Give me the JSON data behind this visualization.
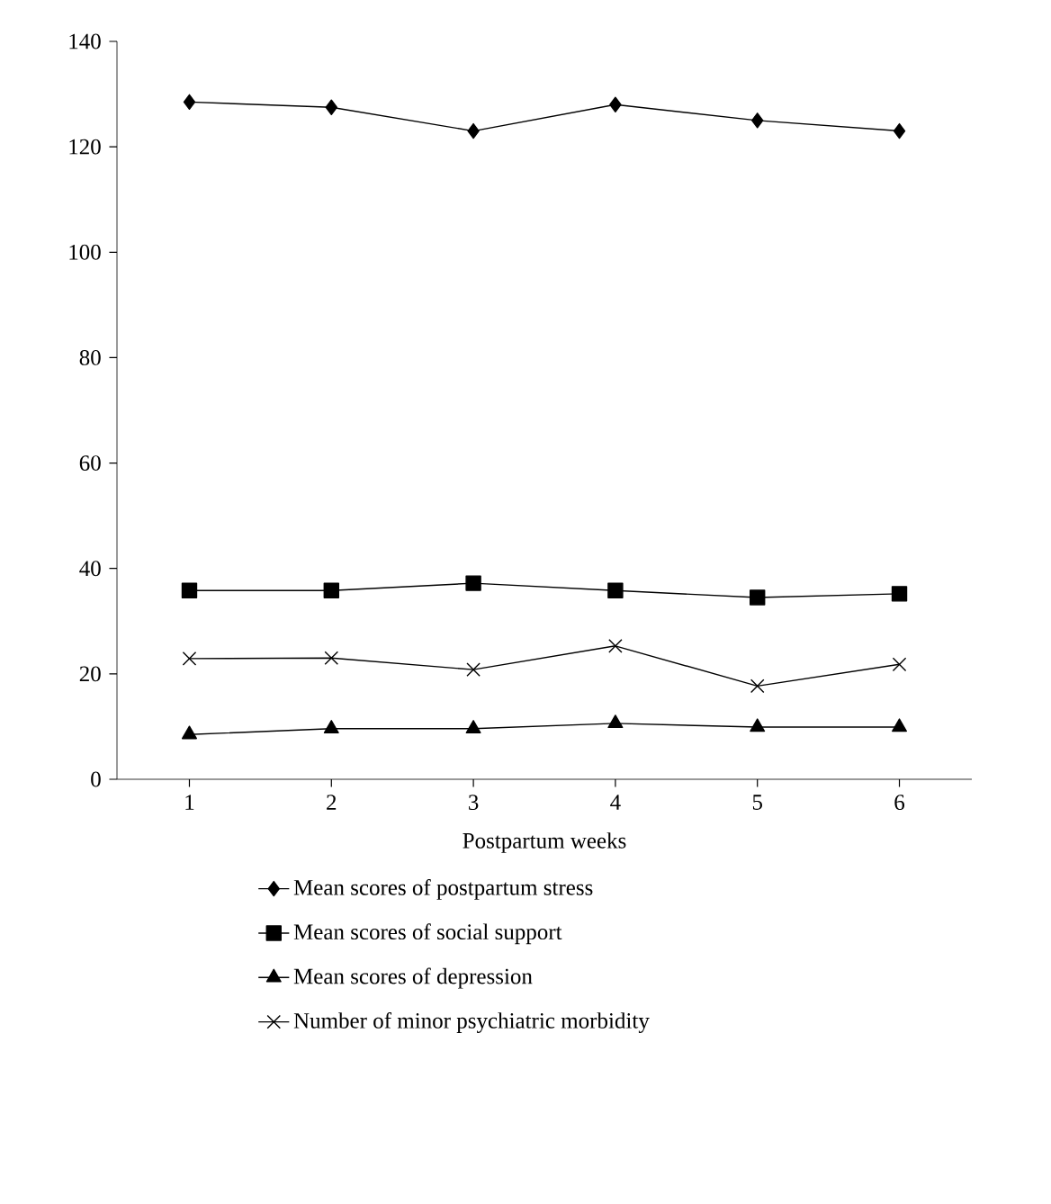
{
  "chart_data": {
    "type": "line",
    "xlabel": "Postpartum weeks",
    "categories": [
      "1",
      "2",
      "3",
      "4",
      "5",
      "6"
    ],
    "ylim": [
      0,
      140
    ],
    "yticks": [
      0,
      20,
      40,
      60,
      80,
      100,
      120,
      140
    ],
    "legend": "bottom",
    "line_style": "solid",
    "series": [
      {
        "name": "Mean scores of postpartum stress",
        "color": "#000000",
        "marker": "diamond",
        "values": [
          128.5,
          127.5,
          123,
          128,
          125,
          123
        ]
      },
      {
        "name": "Mean scores of social support",
        "color": "#000000",
        "marker": "square",
        "values": [
          35.8,
          35.8,
          37.2,
          35.8,
          34.5,
          35.2
        ]
      },
      {
        "name": "Mean scores of depression",
        "color": "#000000",
        "marker": "triangle",
        "values": [
          8.5,
          9.6,
          9.6,
          10.6,
          9.9,
          9.9
        ]
      },
      {
        "name": "Number of minor psychiatric morbidity",
        "color": "#000000",
        "marker": "cross",
        "values": [
          22.9,
          23,
          20.8,
          25.3,
          17.7,
          21.8
        ]
      }
    ]
  }
}
